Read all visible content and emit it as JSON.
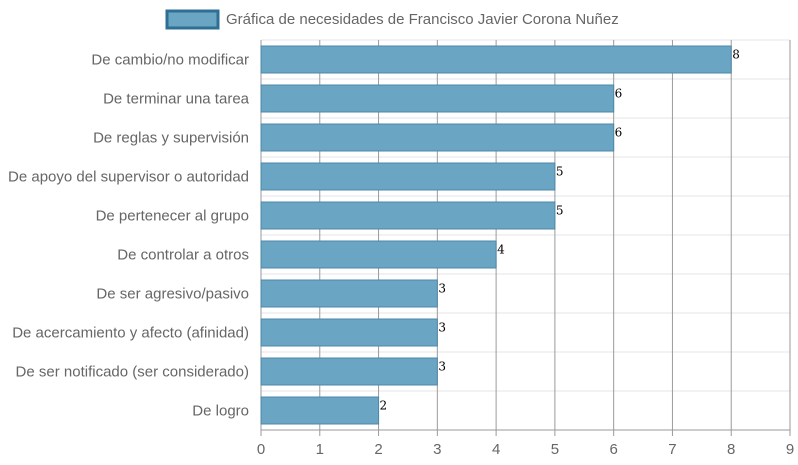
{
  "chart_data": {
    "type": "bar",
    "orientation": "horizontal",
    "categories": [
      "De cambio/no modificar",
      "De terminar una tarea",
      "De reglas y supervisión",
      "De apoyo del supervisor o autoridad",
      "De pertenecer al grupo",
      "De controlar a otros",
      "De ser agresivo/pasivo",
      "De acercamiento y afecto (afinidad)",
      "De ser notificado (ser considerado)",
      "De logro"
    ],
    "series": [
      {
        "name": "Gráfica de necesidades de Francisco Javier Corona Nuñez",
        "values": [
          8,
          6,
          6,
          5,
          5,
          4,
          3,
          3,
          3,
          2
        ]
      }
    ],
    "xlim": [
      0,
      9
    ],
    "x_ticks": [
      0,
      1,
      2,
      3,
      4,
      5,
      6,
      7,
      8,
      9
    ],
    "grid": true,
    "legend_position": "top",
    "colors": {
      "bar_fill": "#6aa5c3",
      "bar_stroke": "#4d88a8",
      "legend_fill": "#6aa5c3",
      "legend_stroke": "#2f6f96",
      "grid": "#e5e5e5",
      "grid_major": "#9a9a9a",
      "axis": "#9a9a9a"
    }
  }
}
